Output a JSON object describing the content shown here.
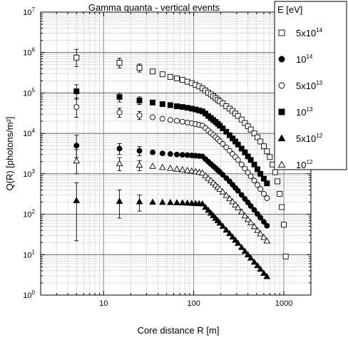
{
  "chart_data": {
    "type": "scatter",
    "title": "Gamma quanta - vertical events",
    "xlabel": "Core distance R [m]",
    "ylabel": "Q(R) [photons/m²]",
    "x_scale": "log",
    "y_scale": "log",
    "xlim": [
      2,
      2000
    ],
    "ylim": [
      1,
      10000000
    ],
    "grid": true,
    "x_ticks": [
      {
        "value": 10,
        "label": "10"
      },
      {
        "value": 100,
        "label": "100"
      },
      {
        "value": 1000,
        "label": "1000"
      }
    ],
    "y_ticks": [
      {
        "value": 1,
        "base": "10",
        "exp": "0"
      },
      {
        "value": 10,
        "base": "10",
        "exp": "1"
      },
      {
        "value": 100,
        "base": "10",
        "exp": "2"
      },
      {
        "value": 1000,
        "base": "10",
        "exp": "3"
      },
      {
        "value": 10000,
        "base": "10",
        "exp": "4"
      },
      {
        "value": 100000,
        "base": "10",
        "exp": "5"
      },
      {
        "value": 1000000,
        "base": "10",
        "exp": "6"
      },
      {
        "value": 10000000,
        "base": "10",
        "exp": "7"
      }
    ],
    "legend": {
      "title": "E [eV]",
      "position": "top-right",
      "entries": [
        {
          "base": "5x10",
          "exp": "14",
          "marker": "square-open"
        },
        {
          "base": "10",
          "exp": "14",
          "marker": "circle-filled"
        },
        {
          "base": "5x10",
          "exp": "13",
          "marker": "circle-open"
        },
        {
          "base": "10",
          "exp": "13",
          "marker": "square-filled"
        },
        {
          "base": "5x10",
          "exp": "12",
          "marker": "triangle-filled"
        },
        {
          "base": "10",
          "exp": "12",
          "marker": "triangle-open"
        }
      ]
    },
    "series": [
      {
        "label": "5x10^14 eV",
        "marker": "square-open",
        "points": [
          {
            "x": 5,
            "y": 750000,
            "ylo": 450000,
            "yhi": 1200000
          },
          {
            "x": 15,
            "y": 560000,
            "ylo": 420000,
            "yhi": 720000
          },
          {
            "x": 25,
            "y": 420000,
            "ylo": 330000,
            "yhi": 520000
          },
          {
            "x": 35,
            "y": 340000
          },
          {
            "x": 45,
            "y": 290000
          },
          {
            "x": 55,
            "y": 250000
          },
          {
            "x": 65,
            "y": 230000
          },
          {
            "x": 75,
            "y": 210000
          },
          {
            "x": 85,
            "y": 190000
          },
          {
            "x": 95,
            "y": 175000
          },
          {
            "x": 105,
            "y": 160000
          },
          {
            "x": 115,
            "y": 145000
          },
          {
            "x": 125,
            "y": 130000
          },
          {
            "x": 135,
            "y": 115000
          },
          {
            "x": 145,
            "y": 102000
          },
          {
            "x": 155,
            "y": 92000
          },
          {
            "x": 165,
            "y": 83000
          },
          {
            "x": 175,
            "y": 75000
          },
          {
            "x": 185,
            "y": 68000
          },
          {
            "x": 195,
            "y": 62000
          },
          {
            "x": 210,
            "y": 55000
          },
          {
            "x": 230,
            "y": 47000
          },
          {
            "x": 250,
            "y": 41000
          },
          {
            "x": 270,
            "y": 36000
          },
          {
            "x": 290,
            "y": 31000
          },
          {
            "x": 310,
            "y": 27000
          },
          {
            "x": 340,
            "y": 22000
          },
          {
            "x": 370,
            "y": 18000
          },
          {
            "x": 400,
            "y": 15000
          },
          {
            "x": 430,
            "y": 12500
          },
          {
            "x": 470,
            "y": 10000
          },
          {
            "x": 510,
            "y": 8000
          },
          {
            "x": 550,
            "y": 6300
          },
          {
            "x": 600,
            "y": 4800
          },
          {
            "x": 650,
            "y": 3600
          },
          {
            "x": 700,
            "y": 2600
          },
          {
            "x": 750,
            "y": 1700
          },
          {
            "x": 800,
            "y": 1100
          },
          {
            "x": 850,
            "y": 650
          },
          {
            "x": 900,
            "y": 320
          },
          {
            "x": 950,
            "y": 150
          },
          {
            "x": 1000,
            "y": 55
          },
          {
            "x": 1050,
            "y": 9
          }
        ]
      },
      {
        "label": "10^14 eV",
        "marker": "circle-filled",
        "points": [
          {
            "x": 5,
            "y": 5000,
            "ylo": 2500,
            "yhi": 9000
          },
          {
            "x": 15,
            "y": 4200,
            "ylo": 3000,
            "yhi": 5600
          },
          {
            "x": 25,
            "y": 3700,
            "ylo": 2800,
            "yhi": 4700
          },
          {
            "x": 35,
            "y": 3400
          },
          {
            "x": 45,
            "y": 3200
          },
          {
            "x": 55,
            "y": 3100
          },
          {
            "x": 65,
            "y": 3000
          },
          {
            "x": 75,
            "y": 2950
          },
          {
            "x": 85,
            "y": 2900
          },
          {
            "x": 95,
            "y": 2850
          },
          {
            "x": 105,
            "y": 2800
          },
          {
            "x": 115,
            "y": 2750
          },
          {
            "x": 125,
            "y": 2700
          },
          {
            "x": 135,
            "y": 2300
          },
          {
            "x": 145,
            "y": 2000
          },
          {
            "x": 155,
            "y": 1750
          },
          {
            "x": 165,
            "y": 1550
          },
          {
            "x": 175,
            "y": 1380
          },
          {
            "x": 185,
            "y": 1230
          },
          {
            "x": 195,
            "y": 1100
          },
          {
            "x": 210,
            "y": 950
          },
          {
            "x": 230,
            "y": 780
          },
          {
            "x": 250,
            "y": 650
          },
          {
            "x": 270,
            "y": 540
          },
          {
            "x": 290,
            "y": 450
          },
          {
            "x": 310,
            "y": 380
          },
          {
            "x": 340,
            "y": 300
          },
          {
            "x": 370,
            "y": 240
          },
          {
            "x": 400,
            "y": 195
          },
          {
            "x": 430,
            "y": 160
          },
          {
            "x": 470,
            "y": 128
          },
          {
            "x": 510,
            "y": 102
          },
          {
            "x": 550,
            "y": 82
          },
          {
            "x": 600,
            "y": 65
          },
          {
            "x": 650,
            "y": 52
          }
        ]
      },
      {
        "label": "5x10^13 eV",
        "marker": "circle-open",
        "points": [
          {
            "x": 5,
            "y": 45000,
            "ylo": 25000,
            "yhi": 75000
          },
          {
            "x": 15,
            "y": 33000,
            "ylo": 25000,
            "yhi": 42000
          },
          {
            "x": 25,
            "y": 28000,
            "ylo": 22000,
            "yhi": 35000
          },
          {
            "x": 35,
            "y": 25000
          },
          {
            "x": 45,
            "y": 23000
          },
          {
            "x": 55,
            "y": 21500
          },
          {
            "x": 65,
            "y": 20500
          },
          {
            "x": 75,
            "y": 19500
          },
          {
            "x": 85,
            "y": 18500
          },
          {
            "x": 95,
            "y": 17800
          },
          {
            "x": 105,
            "y": 17000
          },
          {
            "x": 115,
            "y": 16200
          },
          {
            "x": 125,
            "y": 15500
          },
          {
            "x": 135,
            "y": 13500
          },
          {
            "x": 145,
            "y": 11800
          },
          {
            "x": 155,
            "y": 10300
          },
          {
            "x": 165,
            "y": 9100
          },
          {
            "x": 175,
            "y": 8100
          },
          {
            "x": 185,
            "y": 7200
          },
          {
            "x": 195,
            "y": 6400
          },
          {
            "x": 210,
            "y": 5500
          },
          {
            "x": 230,
            "y": 4500
          },
          {
            "x": 250,
            "y": 3700
          },
          {
            "x": 270,
            "y": 3100
          },
          {
            "x": 290,
            "y": 2600
          },
          {
            "x": 310,
            "y": 2200
          },
          {
            "x": 340,
            "y": 1700
          },
          {
            "x": 370,
            "y": 1350
          },
          {
            "x": 400,
            "y": 1080
          },
          {
            "x": 430,
            "y": 870
          },
          {
            "x": 470,
            "y": 680
          },
          {
            "x": 510,
            "y": 530
          },
          {
            "x": 550,
            "y": 420
          },
          {
            "x": 600,
            "y": 320
          },
          {
            "x": 650,
            "y": 250
          }
        ]
      },
      {
        "label": "10^13 eV",
        "marker": "square-filled",
        "points": [
          {
            "x": 5,
            "y": 110000,
            "ylo": 70000,
            "yhi": 160000
          },
          {
            "x": 15,
            "y": 80000,
            "ylo": 60000,
            "yhi": 100000
          },
          {
            "x": 25,
            "y": 65000,
            "ylo": 52000,
            "yhi": 80000
          },
          {
            "x": 35,
            "y": 58000
          },
          {
            "x": 45,
            "y": 53000
          },
          {
            "x": 55,
            "y": 50000
          },
          {
            "x": 65,
            "y": 47000
          },
          {
            "x": 75,
            "y": 45000
          },
          {
            "x": 85,
            "y": 43000
          },
          {
            "x": 95,
            "y": 41000
          },
          {
            "x": 105,
            "y": 39000
          },
          {
            "x": 115,
            "y": 37000
          },
          {
            "x": 125,
            "y": 35000
          },
          {
            "x": 135,
            "y": 31000
          },
          {
            "x": 145,
            "y": 27000
          },
          {
            "x": 155,
            "y": 24000
          },
          {
            "x": 165,
            "y": 21500
          },
          {
            "x": 175,
            "y": 19300
          },
          {
            "x": 185,
            "y": 17300
          },
          {
            "x": 195,
            "y": 15500
          },
          {
            "x": 210,
            "y": 13300
          },
          {
            "x": 230,
            "y": 11000
          },
          {
            "x": 250,
            "y": 9000
          },
          {
            "x": 270,
            "y": 7500
          },
          {
            "x": 290,
            "y": 6300
          },
          {
            "x": 310,
            "y": 5300
          },
          {
            "x": 340,
            "y": 4200
          },
          {
            "x": 370,
            "y": 3400
          },
          {
            "x": 400,
            "y": 2700
          },
          {
            "x": 430,
            "y": 2200
          },
          {
            "x": 470,
            "y": 1700
          },
          {
            "x": 510,
            "y": 1300
          },
          {
            "x": 550,
            "y": 1000
          },
          {
            "x": 600,
            "y": 760
          },
          {
            "x": 650,
            "y": 580
          }
        ]
      },
      {
        "label": "5x10^12 eV",
        "marker": "triangle-filled",
        "points": [
          {
            "x": 5,
            "y": 220,
            "ylo": 22,
            "yhi": 600
          },
          {
            "x": 15,
            "y": 210,
            "ylo": 80,
            "yhi": 400
          },
          {
            "x": 25,
            "y": 205,
            "ylo": 120,
            "yhi": 300
          },
          {
            "x": 35,
            "y": 200
          },
          {
            "x": 45,
            "y": 198
          },
          {
            "x": 55,
            "y": 196
          },
          {
            "x": 65,
            "y": 194
          },
          {
            "x": 75,
            "y": 192
          },
          {
            "x": 85,
            "y": 190
          },
          {
            "x": 95,
            "y": 188
          },
          {
            "x": 105,
            "y": 186
          },
          {
            "x": 115,
            "y": 184
          },
          {
            "x": 125,
            "y": 182
          },
          {
            "x": 135,
            "y": 150
          },
          {
            "x": 145,
            "y": 127
          },
          {
            "x": 155,
            "y": 108
          },
          {
            "x": 165,
            "y": 93
          },
          {
            "x": 175,
            "y": 80
          },
          {
            "x": 185,
            "y": 70
          },
          {
            "x": 195,
            "y": 61
          },
          {
            "x": 210,
            "y": 51
          },
          {
            "x": 230,
            "y": 41
          },
          {
            "x": 250,
            "y": 33.5
          },
          {
            "x": 270,
            "y": 27.5
          },
          {
            "x": 290,
            "y": 23
          },
          {
            "x": 310,
            "y": 19.3
          },
          {
            "x": 340,
            "y": 15.2
          },
          {
            "x": 370,
            "y": 12.2
          },
          {
            "x": 400,
            "y": 10
          },
          {
            "x": 430,
            "y": 8.3
          },
          {
            "x": 470,
            "y": 6.6
          },
          {
            "x": 510,
            "y": 5.4
          },
          {
            "x": 550,
            "y": 4.4
          },
          {
            "x": 600,
            "y": 3.5
          },
          {
            "x": 650,
            "y": 2.9
          }
        ]
      },
      {
        "label": "10^12 eV",
        "marker": "triangle-open",
        "points": [
          {
            "x": 5,
            "y": 2100,
            "ylo": 1000,
            "yhi": 4000
          },
          {
            "x": 15,
            "y": 1800,
            "ylo": 1200,
            "yhi": 2500
          },
          {
            "x": 25,
            "y": 1650,
            "ylo": 1200,
            "yhi": 2100
          },
          {
            "x": 35,
            "y": 1550
          },
          {
            "x": 45,
            "y": 1450
          },
          {
            "x": 55,
            "y": 1380
          },
          {
            "x": 65,
            "y": 1320
          },
          {
            "x": 75,
            "y": 1270
          },
          {
            "x": 85,
            "y": 1220
          },
          {
            "x": 95,
            "y": 1180
          },
          {
            "x": 105,
            "y": 1140
          },
          {
            "x": 115,
            "y": 1100
          },
          {
            "x": 125,
            "y": 1060
          },
          {
            "x": 135,
            "y": 900
          },
          {
            "x": 145,
            "y": 780
          },
          {
            "x": 155,
            "y": 680
          },
          {
            "x": 165,
            "y": 600
          },
          {
            "x": 175,
            "y": 530
          },
          {
            "x": 185,
            "y": 470
          },
          {
            "x": 195,
            "y": 420
          },
          {
            "x": 210,
            "y": 360
          },
          {
            "x": 230,
            "y": 295
          },
          {
            "x": 250,
            "y": 245
          },
          {
            "x": 270,
            "y": 205
          },
          {
            "x": 290,
            "y": 172
          },
          {
            "x": 310,
            "y": 146
          },
          {
            "x": 340,
            "y": 115
          },
          {
            "x": 370,
            "y": 92
          },
          {
            "x": 400,
            "y": 75
          },
          {
            "x": 430,
            "y": 62
          },
          {
            "x": 470,
            "y": 50
          },
          {
            "x": 510,
            "y": 40
          },
          {
            "x": 550,
            "y": 33
          },
          {
            "x": 600,
            "y": 27
          },
          {
            "x": 650,
            "y": 22
          }
        ]
      }
    ]
  }
}
